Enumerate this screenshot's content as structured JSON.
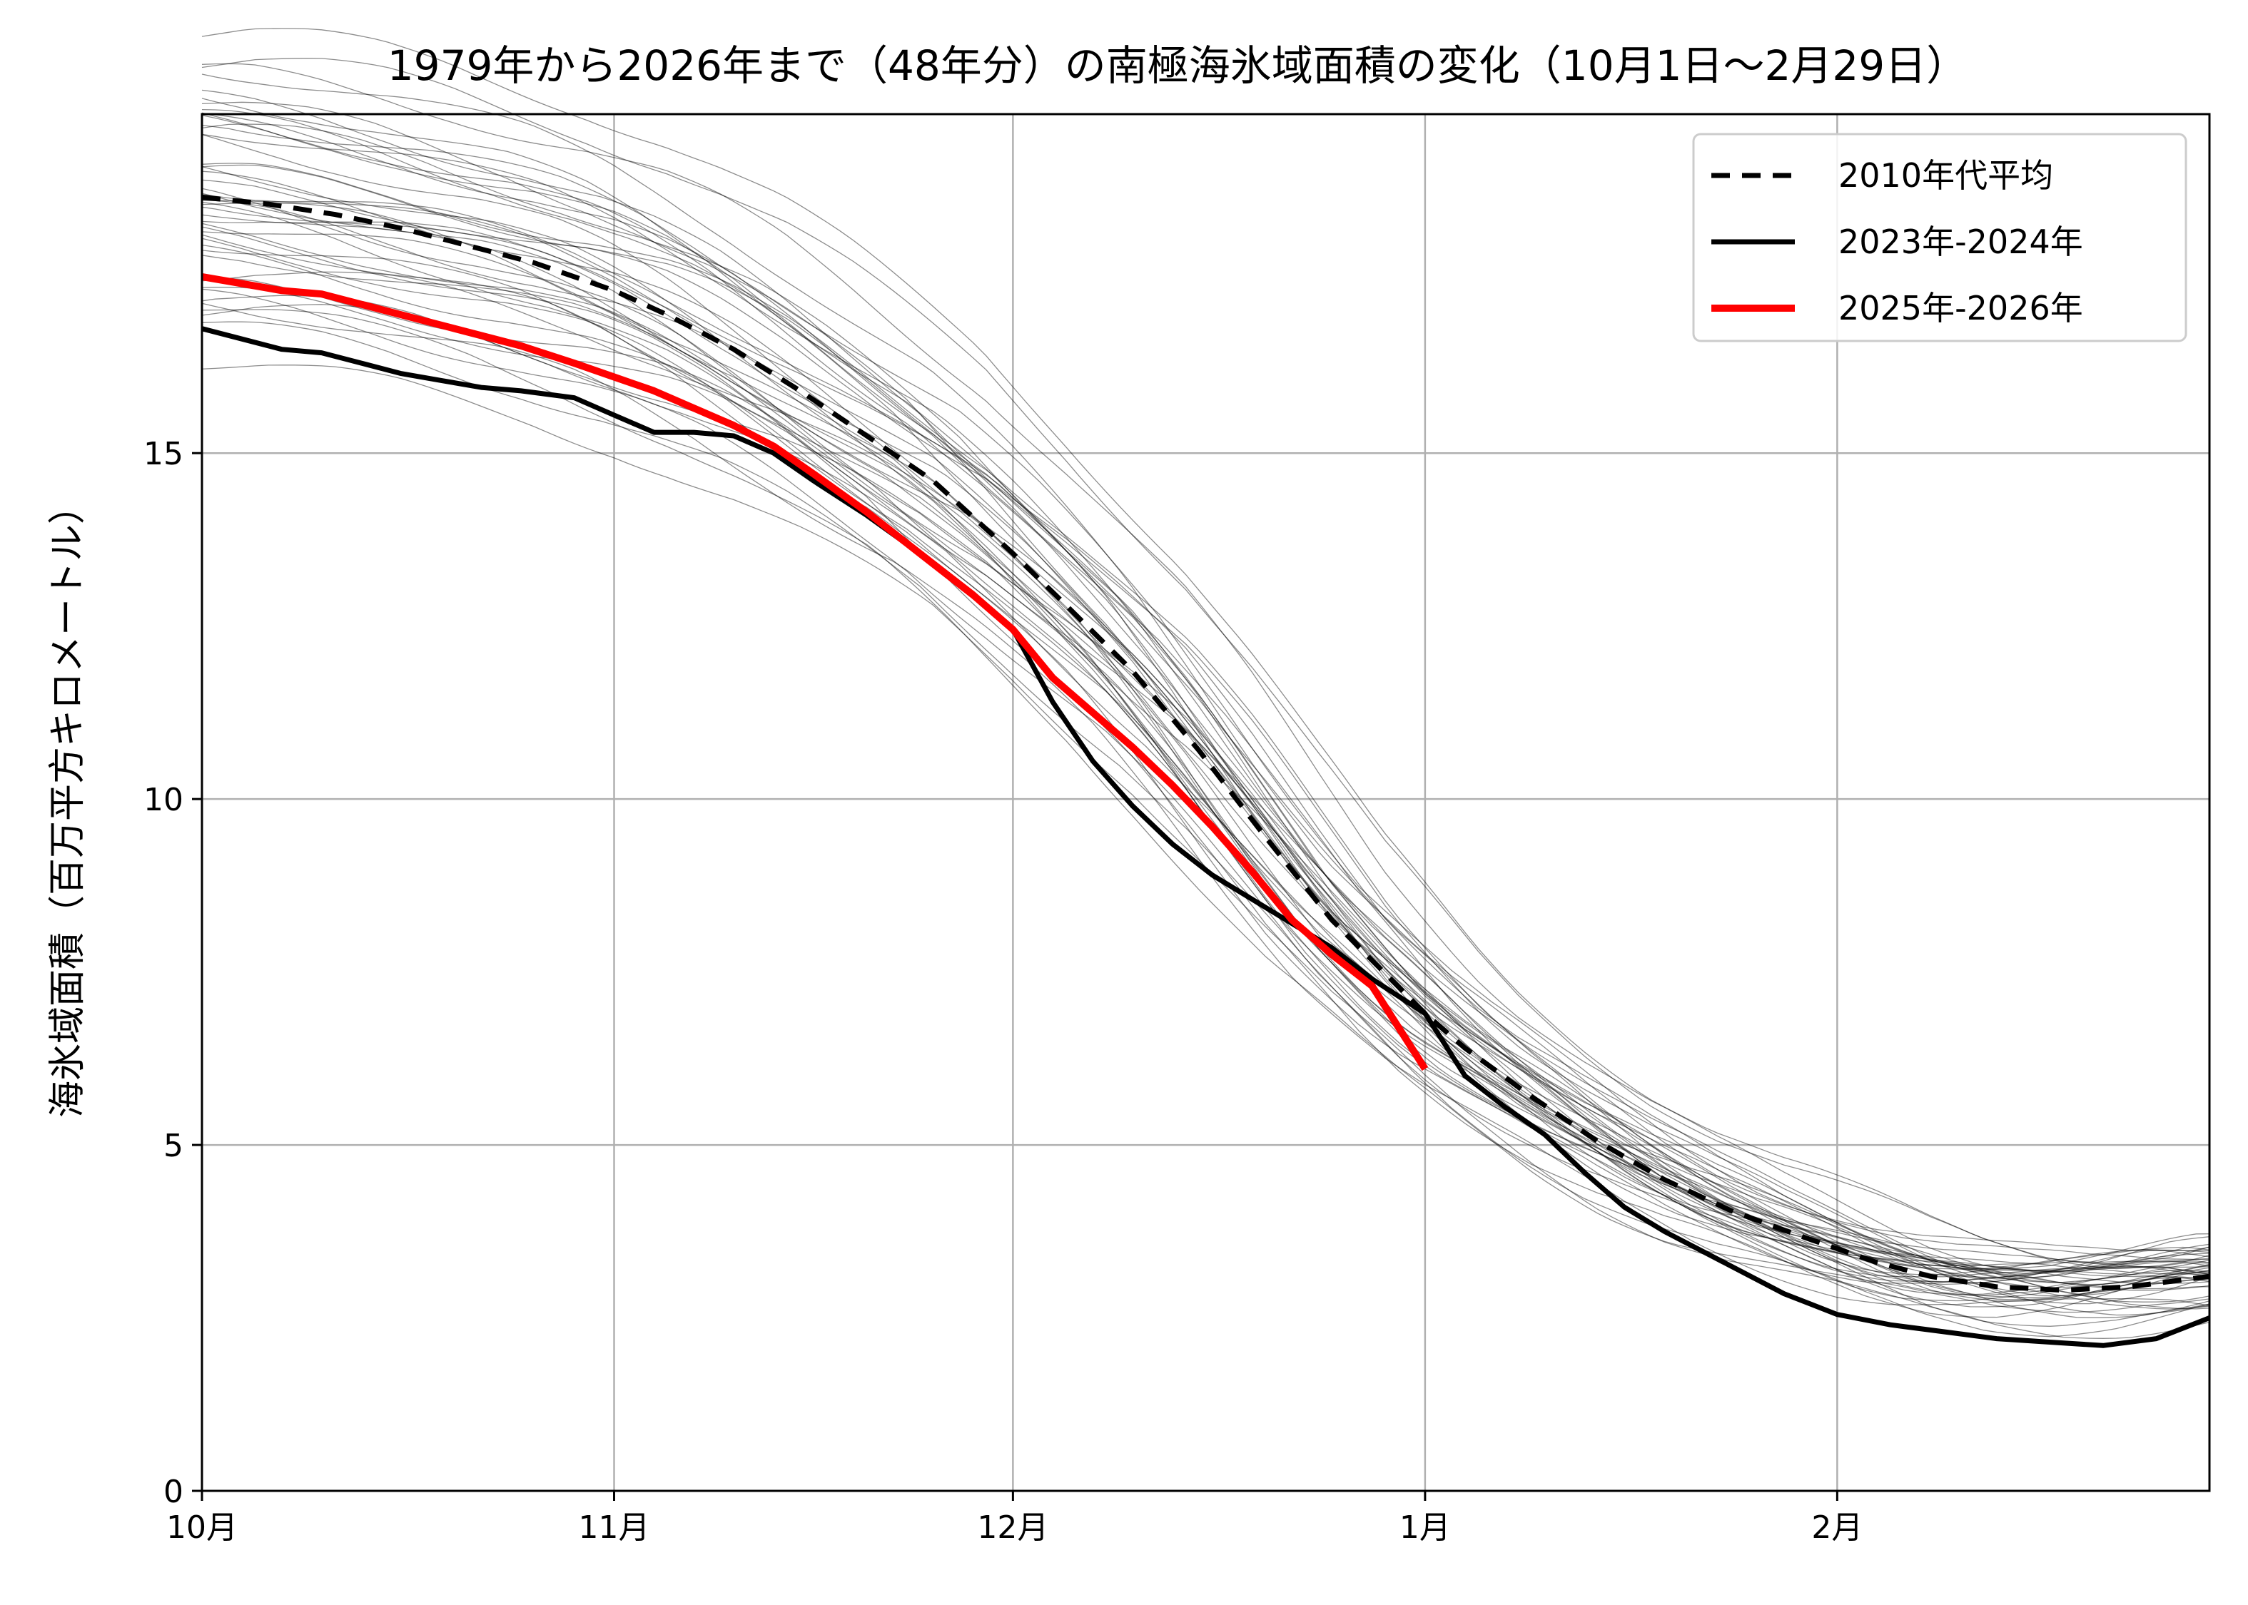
{
  "chart_data": {
    "type": "line",
    "title": "1979年から2026年まで（48年分）の南極海氷域面積の変化（10月1日〜2月29日）",
    "xlabel": "",
    "ylabel": "海氷域面積（百万平方キロメートル）",
    "x_unit": "days since Oct 1",
    "xlim": [
      0,
      151
    ],
    "ylim": [
      0,
      19.9
    ],
    "x_ticks": [
      {
        "day": 0,
        "label": "10月"
      },
      {
        "day": 31,
        "label": "11月"
      },
      {
        "day": 61,
        "label": "12月"
      },
      {
        "day": 92,
        "label": "1月"
      },
      {
        "day": 123,
        "label": "2月"
      }
    ],
    "y_ticks": [
      {
        "value": 0,
        "label": "0"
      },
      {
        "value": 5,
        "label": "5"
      },
      {
        "value": 10,
        "label": "10"
      },
      {
        "value": 15,
        "label": "15"
      }
    ],
    "grid": true,
    "legend_position": "top-right",
    "background_series_count": 48,
    "series": [
      {
        "name": "2010年代平均",
        "style": "dashed",
        "color": "#000000",
        "x": [
          0,
          5,
          10,
          15,
          20,
          25,
          31,
          35,
          40,
          45,
          50,
          55,
          61,
          65,
          70,
          75,
          80,
          85,
          92,
          95,
          100,
          105,
          110,
          115,
          120,
          123,
          126,
          130,
          135,
          140,
          145,
          151
        ],
        "y": [
          18.7,
          18.6,
          18.45,
          18.25,
          18.0,
          17.75,
          17.35,
          17.0,
          16.5,
          15.9,
          15.25,
          14.6,
          13.55,
          12.8,
          11.85,
          10.7,
          9.45,
          8.25,
          6.9,
          6.4,
          5.7,
          5.05,
          4.5,
          4.05,
          3.7,
          3.5,
          3.3,
          3.1,
          2.95,
          2.9,
          2.95,
          3.1
        ]
      },
      {
        "name": "2023年-2024年",
        "style": "solid",
        "color": "#000000",
        "x": [
          0,
          3,
          6,
          9,
          12,
          15,
          18,
          21,
          24,
          28,
          31,
          34,
          37,
          40,
          43,
          46,
          50,
          54,
          58,
          61,
          64,
          67,
          70,
          73,
          76,
          79,
          82,
          85,
          88,
          92,
          95,
          98,
          101,
          104,
          107,
          110,
          113,
          116,
          119,
          123,
          127,
          131,
          135,
          139,
          143,
          147,
          151
        ],
        "y": [
          16.8,
          16.65,
          16.5,
          16.45,
          16.3,
          16.15,
          16.05,
          15.95,
          15.9,
          15.8,
          15.55,
          15.3,
          15.3,
          15.25,
          15.0,
          14.6,
          14.1,
          13.55,
          12.95,
          12.45,
          11.4,
          10.55,
          9.9,
          9.35,
          8.9,
          8.55,
          8.2,
          7.85,
          7.4,
          6.9,
          6.0,
          5.55,
          5.15,
          4.6,
          4.1,
          3.75,
          3.45,
          3.15,
          2.85,
          2.55,
          2.4,
          2.3,
          2.2,
          2.15,
          2.1,
          2.2,
          2.5
        ]
      },
      {
        "name": "2025年-2026年",
        "style": "solid",
        "color": "#ff0000",
        "x": [
          0,
          3,
          6,
          9,
          12,
          15,
          18,
          21,
          24,
          28,
          31,
          34,
          37,
          40,
          43,
          46,
          50,
          54,
          58,
          61,
          64,
          67,
          70,
          73,
          76,
          79,
          82,
          85,
          88,
          92
        ],
        "y": [
          17.55,
          17.45,
          17.35,
          17.3,
          17.15,
          17.0,
          16.85,
          16.7,
          16.55,
          16.3,
          16.1,
          15.9,
          15.65,
          15.4,
          15.1,
          14.7,
          14.15,
          13.55,
          12.95,
          12.45,
          11.75,
          11.25,
          10.75,
          10.2,
          9.6,
          8.95,
          8.25,
          7.75,
          7.3,
          6.1
        ]
      }
    ]
  }
}
